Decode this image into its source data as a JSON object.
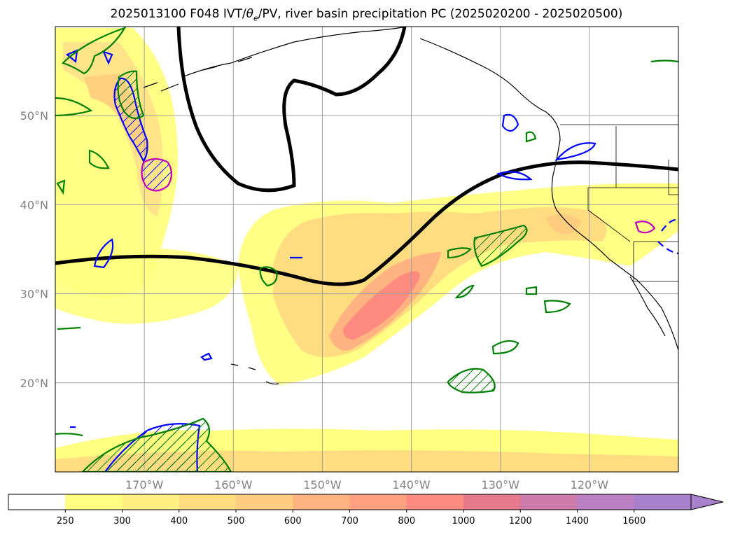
{
  "title": "2025013100 F048 IVT/θe/PV, river basin precipitation PC (2025020200 - 2025020500)",
  "title_parts": {
    "prefix": "2025013100 F048 IVT/",
    "theta": "θ",
    "theta_sub": "e",
    "suffix": "/PV, river basin precipitation PC (2025020200 - 2025020500)"
  },
  "map": {
    "lon_range": [
      -180,
      -110
    ],
    "lat_range": [
      10,
      60
    ],
    "lon_ticks": [
      {
        "lon": -170,
        "label": "170°W"
      },
      {
        "lon": -160,
        "label": "160°W"
      },
      {
        "lon": -150,
        "label": "150°W"
      },
      {
        "lon": -140,
        "label": "140°W"
      },
      {
        "lon": -130,
        "label": "130°W"
      },
      {
        "lon": -120,
        "label": "120°W"
      }
    ],
    "lat_ticks": [
      {
        "lat": 50,
        "label": "50°N"
      },
      {
        "lat": 40,
        "label": "40°N"
      },
      {
        "lat": 30,
        "label": "30°N"
      },
      {
        "lat": 20,
        "label": "20°N"
      }
    ],
    "grid": true
  },
  "colorbar": {
    "levels": [
      "250",
      "300",
      "400",
      "500",
      "600",
      "700",
      "800",
      "1000",
      "1200",
      "1400",
      "1600"
    ],
    "colors": [
      "#ffffff",
      "#ffff80",
      "#ffee80",
      "#ffdc80",
      "#ffcc80",
      "#ffb380",
      "#ffa080",
      "#ff8a80",
      "#e67a8c",
      "#cc7aaa",
      "#bb80c4",
      "#a880cc"
    ],
    "extend": "max"
  },
  "colors": {
    "ivt_fill_low": "#ffff80",
    "ivt_fill_mid": "#ffd080",
    "ivt_fill_high": "#ff8a80",
    "theta_contour": "#000000",
    "pv_positive": "#0000ff",
    "precip_contour": "#008000",
    "special_contour": "#c000c0",
    "coastline": "#000000"
  }
}
